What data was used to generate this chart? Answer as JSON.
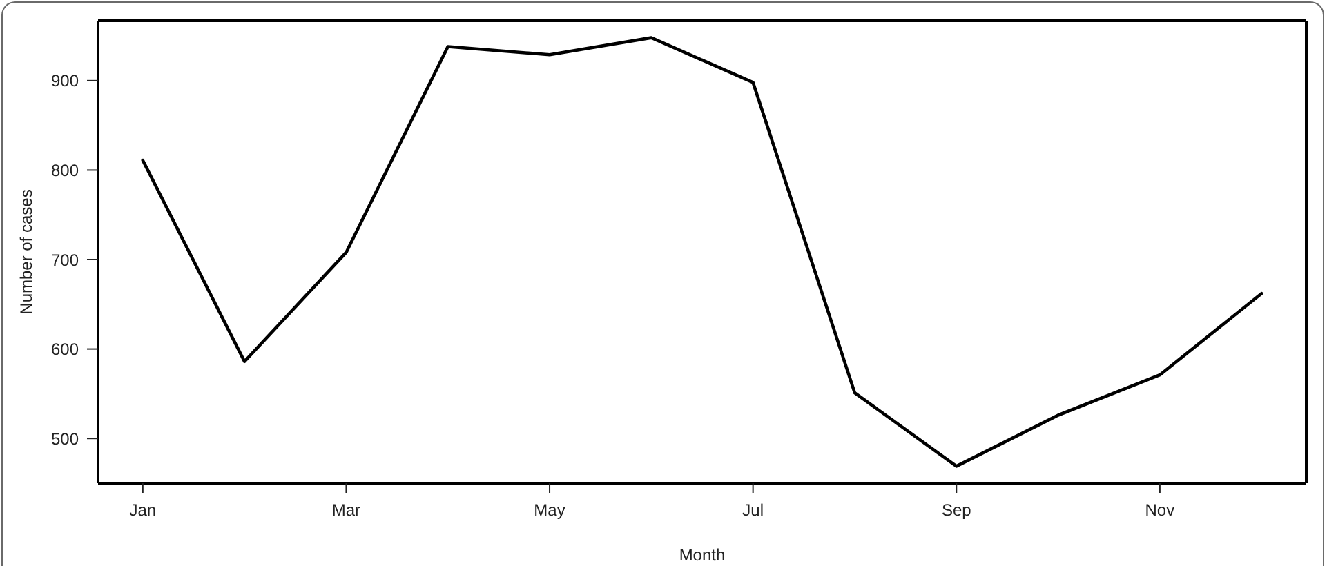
{
  "chart_data": {
    "type": "line",
    "xlabel": "Month",
    "ylabel": "Number of cases",
    "categories": [
      "Jan",
      null,
      "Mar",
      null,
      "May",
      null,
      "Jul",
      null,
      "Sep",
      null,
      "Nov",
      null
    ],
    "series": [
      {
        "color": "#000000",
        "values": [
          811,
          586,
          708,
          938,
          929,
          948,
          898,
          551,
          469,
          526,
          571,
          662
        ]
      }
    ],
    "ylim": [
      450,
      967
    ],
    "yticks": [
      500,
      600,
      700,
      800,
      900
    ],
    "line_style": "solid"
  }
}
